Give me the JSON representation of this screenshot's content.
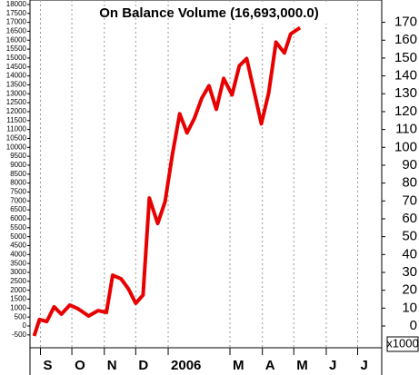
{
  "chart_data": {
    "type": "line",
    "title": "On Balance Volume (16,693,000.0)",
    "y2_unit_label": "x1000",
    "x": [
      -6,
      -1,
      6,
      13,
      20,
      28,
      36,
      46,
      55,
      63,
      69,
      77,
      84,
      91,
      98,
      104,
      112,
      119,
      126,
      133,
      140,
      147,
      154,
      161,
      168,
      175,
      183,
      190,
      197,
      204,
      211,
      218,
      225,
      233,
      239,
      248
    ],
    "series": [
      {
        "name": "On Balance Volume",
        "color": "#e80000",
        "axis": "y2",
        "values": [
          -5.6,
          3.6,
          2.5,
          10.7,
          6.6,
          11.7,
          9.6,
          5.6,
          8.6,
          7.6,
          28.4,
          26.4,
          20.8,
          12.7,
          17.3,
          71.6,
          57.4,
          69.5,
          95.9,
          118.8,
          108.1,
          116.2,
          127.4,
          134.5,
          121.3,
          138.6,
          129.4,
          145.7,
          149.7,
          131.5,
          113.2,
          130.5,
          158.9,
          152.8,
          163.5,
          167
        ]
      }
    ],
    "xlim": [
      -10,
      326
    ],
    "xticks": [
      {
        "value": 0,
        "label": "S"
      },
      {
        "value": 30,
        "label": "O"
      },
      {
        "value": 61,
        "label": "N"
      },
      {
        "value": 91,
        "label": "D"
      },
      {
        "value": 122,
        "label": "2006"
      },
      {
        "value": 181,
        "label": "M"
      },
      {
        "value": 212,
        "label": "A"
      },
      {
        "value": 242,
        "label": "M"
      },
      {
        "value": 273,
        "label": "J"
      },
      {
        "value": 303,
        "label": "J"
      }
    ],
    "ylim": [
      -1220,
      18250
    ],
    "yticks": [
      -500,
      0,
      500,
      1000,
      1500,
      2000,
      2500,
      3000,
      3500,
      4000,
      4500,
      5000,
      5500,
      6000,
      6500,
      7000,
      7500,
      8000,
      8500,
      9000,
      9500,
      10000,
      10500,
      11000,
      11500,
      12000,
      12500,
      13000,
      13500,
      14000,
      14500,
      15000,
      15500,
      16000,
      16500,
      17000,
      17500,
      18000
    ],
    "y2lim": [
      -12.2,
      182.5
    ],
    "y2ticks": [
      0,
      10,
      20,
      30,
      40,
      50,
      60,
      70,
      80,
      90,
      100,
      110,
      120,
      130,
      140,
      150,
      160,
      170
    ],
    "grid": true
  }
}
